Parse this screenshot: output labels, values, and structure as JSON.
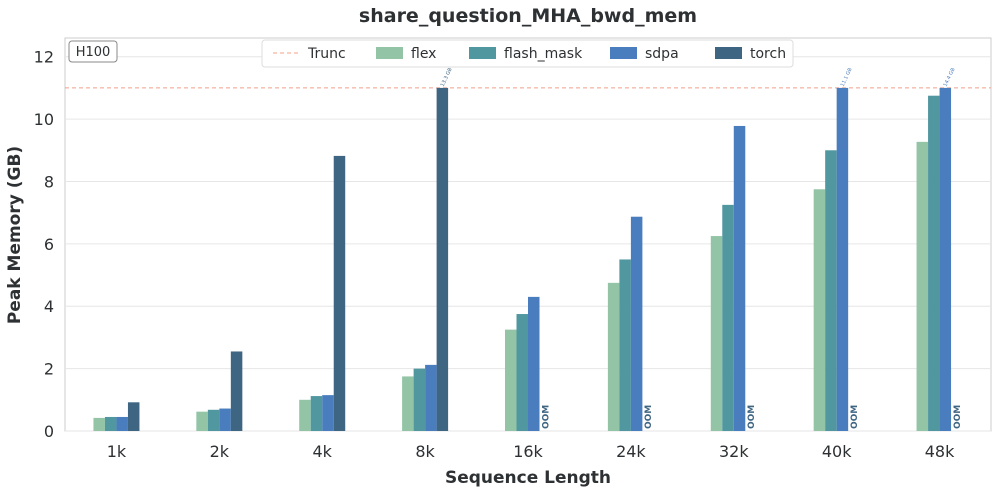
{
  "chart_data": {
    "type": "bar",
    "title": "share_question_MHA_bwd_mem",
    "xlabel": "Sequence Length",
    "ylabel": "Peak Memory (GB)",
    "ylim": [
      0,
      12.6
    ],
    "yticks": [
      0,
      2,
      4,
      6,
      8,
      10,
      12
    ],
    "grid": true,
    "gpu_label": "H100",
    "trunc_value": 11,
    "trunc_label": "Trunc",
    "legend_position": "top-center",
    "categories": [
      "1k",
      "2k",
      "4k",
      "8k",
      "16k",
      "24k",
      "32k",
      "40k",
      "48k"
    ],
    "series": [
      {
        "name": "flex",
        "color": "#93c4a6",
        "values": [
          0.42,
          0.62,
          1.0,
          1.75,
          3.25,
          4.75,
          6.25,
          7.75,
          9.27
        ]
      },
      {
        "name": "flash_mask",
        "color": "#5197a0",
        "values": [
          0.45,
          0.68,
          1.12,
          2.0,
          3.75,
          5.5,
          7.25,
          9.0,
          10.75
        ]
      },
      {
        "name": "sdpa",
        "color": "#4a7dbd",
        "values": [
          0.45,
          0.72,
          1.15,
          2.12,
          4.3,
          6.87,
          9.78,
          11.0,
          11.0
        ]
      },
      {
        "name": "torch",
        "color": "#3e6582",
        "values": [
          0.92,
          2.55,
          8.82,
          11.0,
          null,
          null,
          null,
          null,
          null
        ]
      }
    ],
    "truncated_annotations": [
      {
        "category": "8k",
        "series": "torch",
        "label": "13.3 GB"
      },
      {
        "category": "40k",
        "series": "sdpa",
        "label": "11.1 GB"
      },
      {
        "category": "48k",
        "series": "sdpa",
        "label": "14.4 GB"
      }
    ],
    "oom_label": "OOM",
    "oom_marks": [
      {
        "category": "16k",
        "series": "torch"
      },
      {
        "category": "24k",
        "series": "torch"
      },
      {
        "category": "32k",
        "series": "torch"
      },
      {
        "category": "40k",
        "series": "torch"
      },
      {
        "category": "48k",
        "series": "torch"
      }
    ]
  }
}
